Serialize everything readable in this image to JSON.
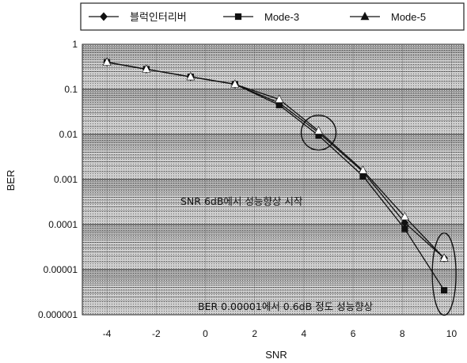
{
  "chart_data": {
    "type": "line",
    "xlabel": "SNR",
    "ylabel": "BER",
    "xlim": [
      -5,
      10.5
    ],
    "ylim": [
      1e-06,
      1
    ],
    "yscale": "log",
    "xticks": [
      "-4",
      "-2",
      "0",
      "2",
      "4",
      "6",
      "8",
      "10"
    ],
    "yticks": [
      "1",
      "0.1",
      "0.01",
      "0.001",
      "0.0001",
      "0.00001",
      "0.000001"
    ],
    "grid": true,
    "legend_position": "top",
    "series": [
      {
        "name": "블럭인터리버",
        "marker": "diamond",
        "x": [
          -4,
          -2.4,
          -0.6,
          1.2,
          3,
          4.6,
          6.4,
          8.1,
          9.7
        ],
        "y": [
          0.4,
          0.28,
          0.19,
          0.13,
          0.05,
          0.011,
          0.0015,
          0.00011,
          1.8e-05
        ]
      },
      {
        "name": "Mode-3",
        "marker": "square",
        "x": [
          -4,
          -2.4,
          -0.6,
          1.2,
          3,
          4.6,
          6.4,
          8.1,
          9.7
        ],
        "y": [
          0.4,
          0.28,
          0.19,
          0.13,
          0.045,
          0.0095,
          0.0012,
          8e-05,
          3.5e-06
        ]
      },
      {
        "name": "Mode-5",
        "marker": "triangle",
        "x": [
          -4,
          -2.4,
          -0.6,
          1.2,
          3,
          4.6,
          6.4,
          8.1,
          9.7
        ],
        "y": [
          0.4,
          0.28,
          0.19,
          0.13,
          0.06,
          0.012,
          0.0016,
          0.00015,
          1.8e-05
        ]
      }
    ],
    "annotations": [
      {
        "text": "SNR 6dB에서 성능향상 시작"
      },
      {
        "text": "BER 0.00001에서 0.6dB 정도 성능향상"
      }
    ],
    "highlight_ellipses": [
      {
        "x": 4.6,
        "y": 0.011
      },
      {
        "x": 9.7,
        "y": 8e-06
      }
    ]
  }
}
